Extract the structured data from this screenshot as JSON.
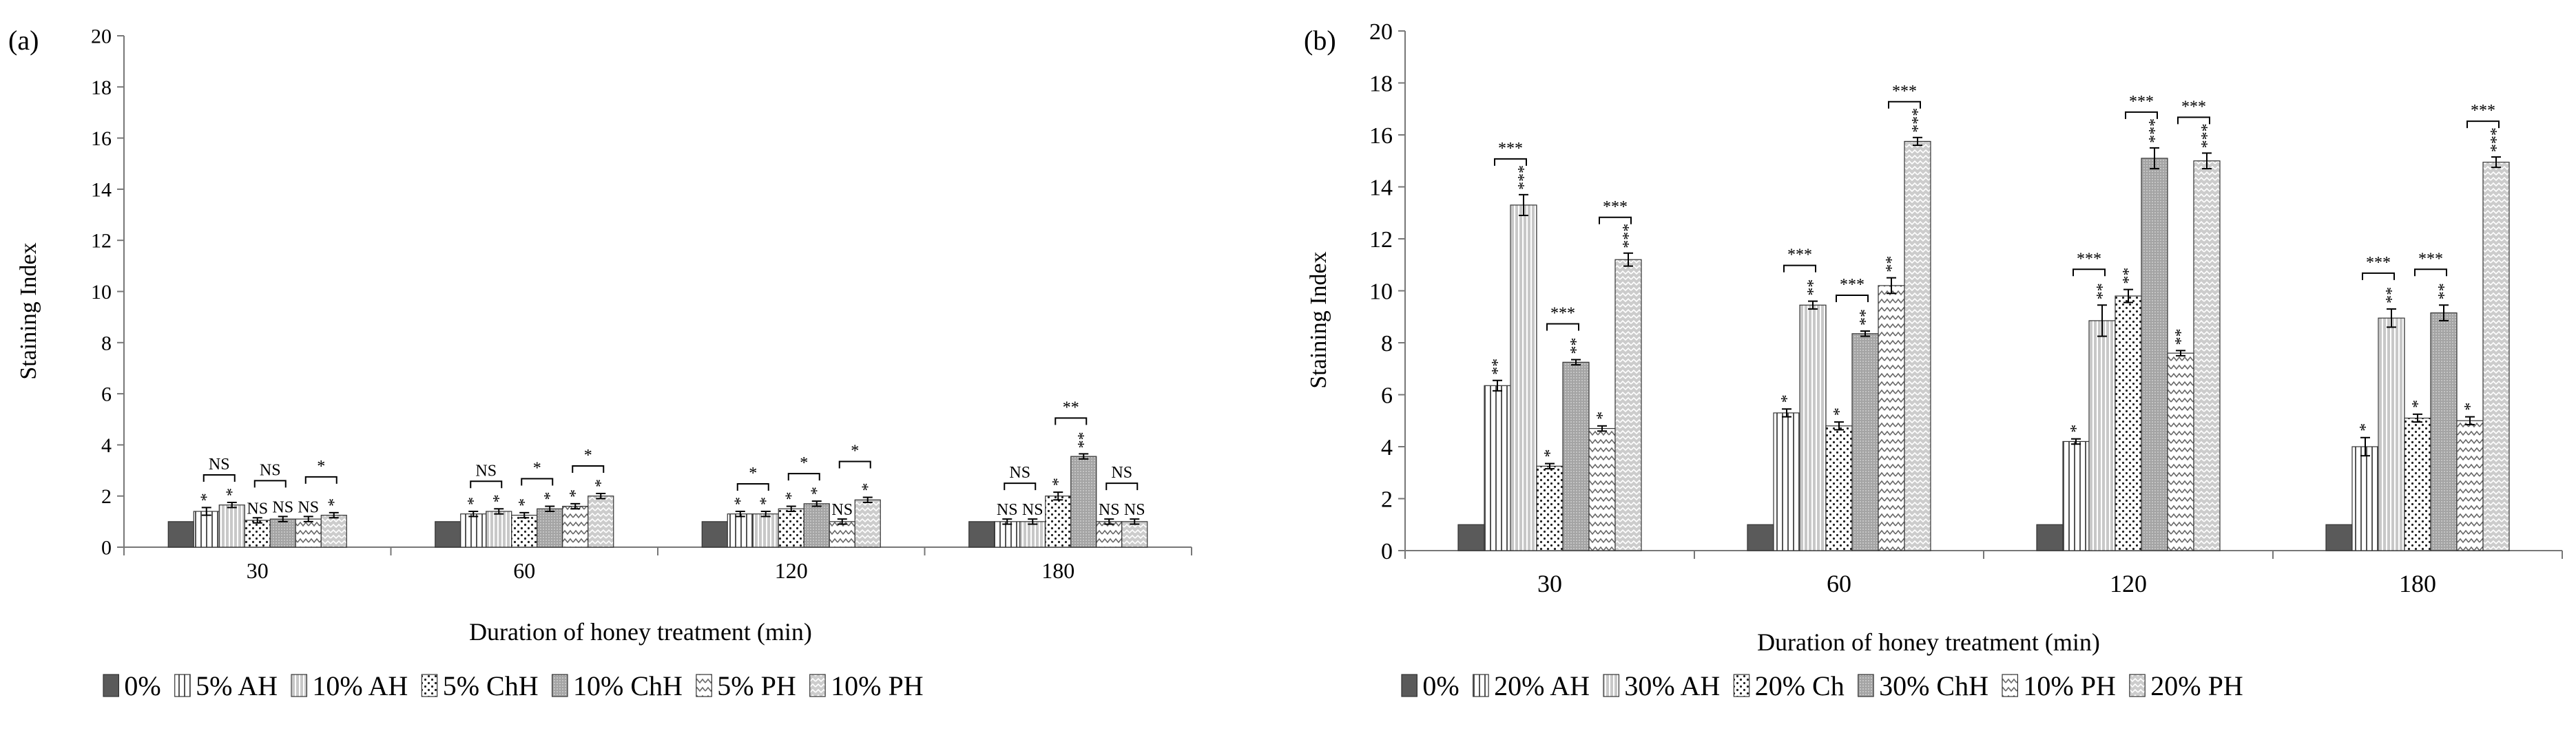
{
  "colors": {
    "axis": "#777777",
    "bar_outline": "#333333",
    "sig": "#000000",
    "background": "#ffffff"
  },
  "chart_data": [
    {
      "type": "bar",
      "panel_label": "(a)",
      "title": "",
      "xlabel": "Duration of honey treatment (min)",
      "ylabel": "Staining Index",
      "ylim": [
        0,
        20
      ],
      "yticks": [
        0,
        2,
        4,
        6,
        8,
        10,
        12,
        14,
        16,
        18,
        20
      ],
      "grid": false,
      "legend_position": "bottom",
      "categories": [
        "30",
        "60",
        "120",
        "180"
      ],
      "series": [
        {
          "name": "0%",
          "pattern": "solid",
          "values": [
            1.0,
            1.0,
            1.0,
            1.0
          ],
          "errors": [
            0,
            0,
            0,
            0
          ],
          "sig": [
            "",
            "",
            "",
            ""
          ]
        },
        {
          "name": "5% AH",
          "pattern": "vlines",
          "values": [
            1.4,
            1.3,
            1.3,
            1.0
          ],
          "errors": [
            0.15,
            0.1,
            0.1,
            0.1
          ],
          "sig": [
            "*",
            "*",
            "*",
            "NS"
          ]
        },
        {
          "name": "10% AH",
          "pattern": "dvlines",
          "values": [
            1.65,
            1.4,
            1.3,
            1.0
          ],
          "errors": [
            0.1,
            0.1,
            0.1,
            0.1
          ],
          "sig": [
            "*",
            "*",
            "*",
            "NS"
          ]
        },
        {
          "name": "5% ChH",
          "pattern": "dots",
          "values": [
            1.05,
            1.25,
            1.5,
            2.0
          ],
          "errors": [
            0.1,
            0.1,
            0.1,
            0.15
          ],
          "sig": [
            "NS",
            "*",
            "*",
            "*"
          ]
        },
        {
          "name": "10% ChH",
          "pattern": "dgrey",
          "values": [
            1.1,
            1.5,
            1.7,
            3.55
          ],
          "errors": [
            0.1,
            0.1,
            0.1,
            0.1
          ],
          "sig": [
            "NS",
            "*",
            "*",
            "**"
          ]
        },
        {
          "name": "5% PH",
          "pattern": "zigzag",
          "values": [
            1.1,
            1.6,
            1.0,
            1.0
          ],
          "errors": [
            0.1,
            0.1,
            0.1,
            0.1
          ],
          "sig": [
            "NS",
            "*",
            "NS",
            "NS"
          ]
        },
        {
          "name": "10% PH",
          "pattern": "dzigzag",
          "values": [
            1.25,
            2.0,
            1.85,
            1.0
          ],
          "errors": [
            0.1,
            0.1,
            0.1,
            0.1
          ],
          "sig": [
            "*",
            "*",
            "*",
            "NS"
          ]
        }
      ],
      "brackets": [
        {
          "cat": 0,
          "from": 1,
          "to": 2,
          "label": "NS"
        },
        {
          "cat": 0,
          "from": 3,
          "to": 4,
          "label": "NS"
        },
        {
          "cat": 0,
          "from": 5,
          "to": 6,
          "label": "*"
        },
        {
          "cat": 1,
          "from": 1,
          "to": 2,
          "label": "NS"
        },
        {
          "cat": 1,
          "from": 3,
          "to": 4,
          "label": "*"
        },
        {
          "cat": 1,
          "from": 5,
          "to": 6,
          "label": "*"
        },
        {
          "cat": 2,
          "from": 1,
          "to": 2,
          "label": "*"
        },
        {
          "cat": 2,
          "from": 3,
          "to": 4,
          "label": "*"
        },
        {
          "cat": 2,
          "from": 5,
          "to": 6,
          "label": "*"
        },
        {
          "cat": 3,
          "from": 1,
          "to": 2,
          "label": "NS"
        },
        {
          "cat": 3,
          "from": 3,
          "to": 4,
          "label": "**"
        },
        {
          "cat": 3,
          "from": 5,
          "to": 6,
          "label": "NS"
        }
      ]
    },
    {
      "type": "bar",
      "panel_label": "(b)",
      "title": "",
      "xlabel": "Duration of honey treatment (min)",
      "ylabel": "Staining Index",
      "ylim": [
        0,
        20
      ],
      "yticks": [
        0,
        2,
        4,
        6,
        8,
        10,
        12,
        14,
        16,
        18,
        20
      ],
      "grid": false,
      "legend_position": "bottom",
      "categories": [
        "30",
        "60",
        "120",
        "180"
      ],
      "series": [
        {
          "name": "0%",
          "pattern": "solid",
          "values": [
            1.0,
            1.0,
            1.0,
            1.0
          ],
          "errors": [
            0,
            0,
            0,
            0
          ],
          "sig": [
            "",
            "",
            "",
            ""
          ]
        },
        {
          "name": "20% AH",
          "pattern": "vlines",
          "values": [
            6.35,
            5.3,
            4.2,
            4.0
          ],
          "errors": [
            0.2,
            0.15,
            0.1,
            0.35
          ],
          "sig": [
            "**",
            "*",
            "*",
            "*"
          ]
        },
        {
          "name": "30% AH",
          "pattern": "dvlines",
          "values": [
            13.3,
            9.45,
            8.85,
            8.95
          ],
          "errors": [
            0.4,
            0.15,
            0.6,
            0.35
          ],
          "sig": [
            "***",
            "**",
            "**",
            "**"
          ]
        },
        {
          "name": "20% Ch",
          "pattern": "dots",
          "values": [
            3.25,
            4.8,
            9.8,
            5.1
          ],
          "errors": [
            0.1,
            0.15,
            0.25,
            0.15
          ],
          "sig": [
            "*",
            "*",
            "**",
            "*"
          ]
        },
        {
          "name": "30% ChH",
          "pattern": "dgrey",
          "values": [
            7.25,
            8.35,
            15.1,
            9.15
          ],
          "errors": [
            0.1,
            0.1,
            0.4,
            0.3
          ],
          "sig": [
            "**",
            "**",
            "***",
            "**"
          ]
        },
        {
          "name": "10% PH",
          "pattern": "zigzag",
          "values": [
            4.7,
            10.2,
            7.6,
            5.0
          ],
          "errors": [
            0.1,
            0.3,
            0.1,
            0.15
          ],
          "sig": [
            "*",
            "**",
            "**",
            "*"
          ]
        },
        {
          "name": "20% PH",
          "pattern": "dzigzag",
          "values": [
            11.2,
            15.75,
            15.0,
            14.95
          ],
          "errors": [
            0.25,
            0.15,
            0.3,
            0.2
          ],
          "sig": [
            "***",
            "***",
            "***",
            "***"
          ]
        }
      ],
      "brackets": [
        {
          "cat": 0,
          "from": 1,
          "to": 2,
          "label": "***"
        },
        {
          "cat": 0,
          "from": 3,
          "to": 4,
          "label": "***"
        },
        {
          "cat": 0,
          "from": 5,
          "to": 6,
          "label": "***"
        },
        {
          "cat": 1,
          "from": 1,
          "to": 2,
          "label": "***"
        },
        {
          "cat": 1,
          "from": 3,
          "to": 4,
          "label": "***"
        },
        {
          "cat": 1,
          "from": 5,
          "to": 6,
          "label": "***"
        },
        {
          "cat": 2,
          "from": 1,
          "to": 2,
          "label": "***"
        },
        {
          "cat": 2,
          "from": 3,
          "to": 4,
          "label": "***"
        },
        {
          "cat": 2,
          "from": 5,
          "to": 6,
          "label": "***"
        },
        {
          "cat": 3,
          "from": 1,
          "to": 2,
          "label": "***"
        },
        {
          "cat": 3,
          "from": 3,
          "to": 4,
          "label": "***"
        },
        {
          "cat": 3,
          "from": 5,
          "to": 6,
          "label": "***"
        }
      ]
    }
  ]
}
